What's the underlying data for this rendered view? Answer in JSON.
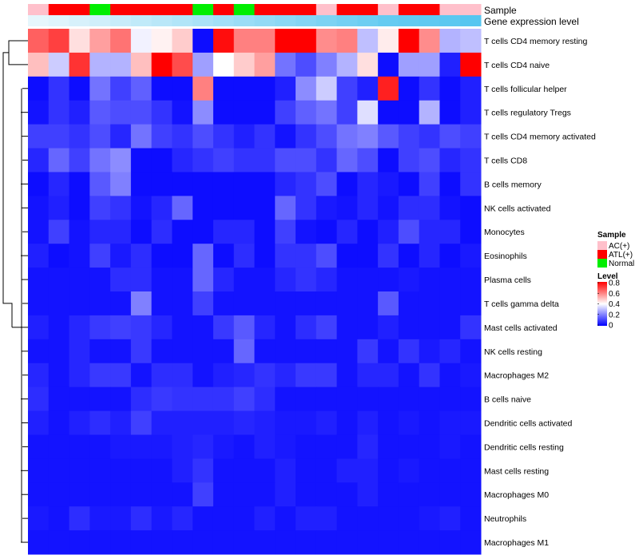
{
  "chart_data": {
    "type": "heatmap",
    "annotation_tracks": [
      "Sample",
      "Gene expression level"
    ],
    "sample_groups": [
      "AC(+)",
      "ATL(+)",
      "ATL(+)",
      "Normal",
      "ATL(+)",
      "ATL(+)",
      "ATL(+)",
      "ATL(+)",
      "Normal",
      "ATL(+)",
      "Normal",
      "ATL(+)",
      "ATL(+)",
      "ATL(+)",
      "AC(+)",
      "ATL(+)",
      "ATL(+)",
      "AC(+)",
      "ATL(+)",
      "ATL(+)",
      "AC(+)",
      "AC(+)"
    ],
    "gene_expression_level": [
      0.05,
      0.1,
      0.15,
      0.2,
      0.25,
      0.3,
      0.35,
      0.4,
      0.45,
      0.5,
      0.55,
      0.6,
      0.65,
      0.7,
      0.75,
      0.8,
      0.85,
      0.9,
      0.92,
      0.94,
      0.97,
      1.0
    ],
    "rows": [
      "T cells CD4 memory resting",
      "T cells CD4 naive",
      "T cells follicular helper",
      "T cells regulatory  Tregs",
      "T cells CD4 memory activated",
      "T cells CD8",
      "B cells memory",
      "NK cells activated",
      "Monocytes",
      "Eosinophils",
      "Plasma cells",
      "T cells gamma delta",
      "Mast cells activated",
      "NK cells resting",
      "Macrophages M2",
      "B cells naive",
      "Dendritic cells activated",
      "Dendritic cells resting",
      "Mast cells resting",
      "Macrophages M0",
      "Neutrophils",
      "Macrophages M1"
    ],
    "values": [
      [
        0.65,
        0.7,
        0.45,
        0.55,
        0.62,
        0.38,
        0.42,
        0.48,
        0.02,
        0.78,
        0.6,
        0.6,
        0.8,
        0.8,
        0.58,
        0.6,
        0.3,
        0.43,
        0.8,
        0.58,
        0.28,
        0.3
      ],
      [
        0.5,
        0.32,
        0.72,
        0.28,
        0.28,
        0.5,
        0.8,
        0.68,
        0.25,
        0.4,
        0.48,
        0.55,
        0.18,
        0.12,
        0.2,
        0.28,
        0.45,
        0.02,
        0.25,
        0.25,
        0.05,
        0.8
      ],
      [
        0.02,
        0.08,
        0.02,
        0.18,
        0.1,
        0.15,
        0.02,
        0.02,
        0.6,
        0.02,
        0.02,
        0.02,
        0.05,
        0.22,
        0.32,
        0.1,
        0.05,
        0.75,
        0.02,
        0.08,
        0.02,
        0.05
      ],
      [
        0.03,
        0.08,
        0.05,
        0.14,
        0.12,
        0.12,
        0.08,
        0.03,
        0.22,
        0.02,
        0.02,
        0.02,
        0.1,
        0.15,
        0.18,
        0.1,
        0.35,
        0.02,
        0.02,
        0.28,
        0.02,
        0.05
      ],
      [
        0.1,
        0.1,
        0.08,
        0.12,
        0.06,
        0.18,
        0.1,
        0.08,
        0.12,
        0.08,
        0.05,
        0.08,
        0.03,
        0.08,
        0.12,
        0.18,
        0.2,
        0.14,
        0.1,
        0.08,
        0.12,
        0.1
      ],
      [
        0.06,
        0.16,
        0.1,
        0.18,
        0.22,
        0.02,
        0.02,
        0.06,
        0.08,
        0.1,
        0.08,
        0.08,
        0.12,
        0.12,
        0.08,
        0.16,
        0.12,
        0.02,
        0.1,
        0.12,
        0.06,
        0.08
      ],
      [
        0.02,
        0.06,
        0.02,
        0.14,
        0.2,
        0.02,
        0.02,
        0.02,
        0.02,
        0.02,
        0.02,
        0.02,
        0.06,
        0.08,
        0.12,
        0.02,
        0.06,
        0.04,
        0.02,
        0.1,
        0.02,
        0.08
      ],
      [
        0.03,
        0.05,
        0.02,
        0.1,
        0.08,
        0.03,
        0.06,
        0.16,
        0.02,
        0.02,
        0.02,
        0.02,
        0.16,
        0.08,
        0.04,
        0.03,
        0.06,
        0.03,
        0.07,
        0.07,
        0.03,
        0.02
      ],
      [
        0.03,
        0.1,
        0.03,
        0.06,
        0.06,
        0.02,
        0.07,
        0.02,
        0.02,
        0.06,
        0.06,
        0.02,
        0.1,
        0.03,
        0.02,
        0.06,
        0.02,
        0.05,
        0.12,
        0.06,
        0.06,
        0.02
      ],
      [
        0.05,
        0.02,
        0.03,
        0.1,
        0.04,
        0.07,
        0.02,
        0.02,
        0.16,
        0.02,
        0.07,
        0.02,
        0.08,
        0.08,
        0.12,
        0.02,
        0.02,
        0.08,
        0.02,
        0.06,
        0.02,
        0.04
      ],
      [
        0.03,
        0.03,
        0.03,
        0.03,
        0.07,
        0.07,
        0.03,
        0.03,
        0.16,
        0.06,
        0.03,
        0.03,
        0.06,
        0.08,
        0.06,
        0.03,
        0.03,
        0.03,
        0.04,
        0.03,
        0.03,
        0.03
      ],
      [
        0.03,
        0.03,
        0.03,
        0.03,
        0.03,
        0.2,
        0.03,
        0.03,
        0.1,
        0.03,
        0.03,
        0.03,
        0.03,
        0.03,
        0.03,
        0.03,
        0.03,
        0.14,
        0.03,
        0.03,
        0.03,
        0.03
      ],
      [
        0.05,
        0.03,
        0.06,
        0.09,
        0.1,
        0.09,
        0.06,
        0.03,
        0.03,
        0.09,
        0.14,
        0.06,
        0.03,
        0.07,
        0.1,
        0.03,
        0.03,
        0.05,
        0.03,
        0.03,
        0.03,
        0.08
      ],
      [
        0.03,
        0.03,
        0.06,
        0.03,
        0.03,
        0.09,
        0.03,
        0.03,
        0.03,
        0.03,
        0.16,
        0.03,
        0.03,
        0.03,
        0.03,
        0.03,
        0.09,
        0.03,
        0.08,
        0.04,
        0.06,
        0.03
      ],
      [
        0.06,
        0.03,
        0.06,
        0.09,
        0.09,
        0.03,
        0.07,
        0.07,
        0.03,
        0.05,
        0.06,
        0.08,
        0.06,
        0.09,
        0.09,
        0.03,
        0.06,
        0.06,
        0.03,
        0.08,
        0.03,
        0.04
      ],
      [
        0.07,
        0.03,
        0.03,
        0.03,
        0.03,
        0.07,
        0.09,
        0.08,
        0.08,
        0.08,
        0.1,
        0.07,
        0.03,
        0.03,
        0.03,
        0.03,
        0.03,
        0.03,
        0.03,
        0.03,
        0.03,
        0.03
      ],
      [
        0.05,
        0.03,
        0.05,
        0.07,
        0.05,
        0.1,
        0.05,
        0.05,
        0.05,
        0.05,
        0.06,
        0.05,
        0.04,
        0.04,
        0.05,
        0.03,
        0.05,
        0.03,
        0.04,
        0.03,
        0.04,
        0.04
      ],
      [
        0.03,
        0.03,
        0.03,
        0.03,
        0.04,
        0.04,
        0.04,
        0.05,
        0.06,
        0.04,
        0.03,
        0.05,
        0.04,
        0.03,
        0.03,
        0.03,
        0.06,
        0.03,
        0.03,
        0.03,
        0.04,
        0.03
      ],
      [
        0.03,
        0.03,
        0.03,
        0.03,
        0.03,
        0.03,
        0.03,
        0.05,
        0.08,
        0.03,
        0.03,
        0.03,
        0.05,
        0.03,
        0.03,
        0.05,
        0.05,
        0.03,
        0.04,
        0.03,
        0.03,
        0.03
      ],
      [
        0.03,
        0.03,
        0.03,
        0.03,
        0.03,
        0.03,
        0.03,
        0.03,
        0.1,
        0.03,
        0.03,
        0.03,
        0.05,
        0.03,
        0.03,
        0.03,
        0.05,
        0.03,
        0.03,
        0.03,
        0.03,
        0.03
      ],
      [
        0.04,
        0.03,
        0.07,
        0.04,
        0.04,
        0.07,
        0.04,
        0.06,
        0.03,
        0.03,
        0.03,
        0.05,
        0.03,
        0.05,
        0.05,
        0.03,
        0.03,
        0.03,
        0.03,
        0.04,
        0.05,
        0.03
      ],
      [
        0.03,
        0.03,
        0.03,
        0.03,
        0.03,
        0.03,
        0.03,
        0.03,
        0.03,
        0.03,
        0.03,
        0.03,
        0.03,
        0.03,
        0.03,
        0.03,
        0.03,
        0.03,
        0.03,
        0.03,
        0.03,
        0.03
      ]
    ],
    "legend": {
      "sample_title": "Sample",
      "sample_items": [
        {
          "label": "AC(+)",
          "color": "#ffc0cb"
        },
        {
          "label": "ATL(+)",
          "color": "#ff0000"
        },
        {
          "label": "Normal",
          "color": "#00ee00"
        }
      ],
      "level_title": "Level",
      "level_ticks": [
        "0.8",
        "0.6",
        "0.4",
        "0.2",
        "0"
      ],
      "level_range": [
        0,
        0.8
      ]
    },
    "color_scale": {
      "low": "#0000ff",
      "mid": "#ffffff",
      "high": "#ff0000",
      "min": 0,
      "mid_value": 0.4,
      "max": 0.8
    },
    "expression_colors": {
      "low": "#eef9fd",
      "high": "#56c6f0"
    },
    "dendrogram": "left, rows clustered",
    "grid": false
  }
}
